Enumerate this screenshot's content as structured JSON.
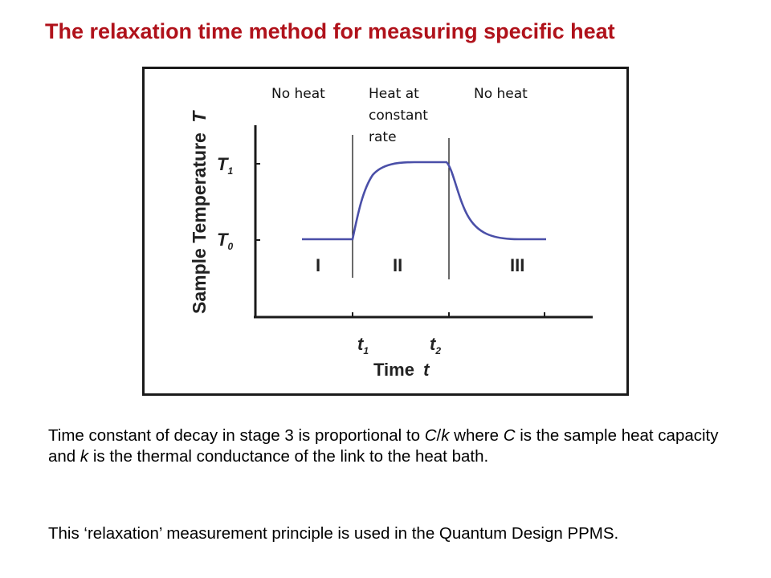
{
  "slide": {
    "title": "The relaxation time method for measuring specific heat"
  },
  "figure": {
    "ylabel": "Sample Temperature",
    "ylabel_var": "T",
    "y_ticks": [
      {
        "base": "T",
        "sub": "1"
      },
      {
        "base": "T",
        "sub": "0"
      }
    ],
    "xlabel": "Time",
    "xlabel_var": "t",
    "x_ticks": [
      {
        "base": "t",
        "sub": "1"
      },
      {
        "base": "t",
        "sub": "2"
      }
    ],
    "stages": [
      "I",
      "II",
      "III"
    ],
    "phase_labels": [
      "No heat",
      "Heat at\nconstant\nrate",
      "No heat"
    ],
    "curve_color": "#4a4fa8",
    "axis_color": "#1a1a1a"
  },
  "text": {
    "p1": {
      "a": "Time constant of decay in stage 3 is proportional to ",
      "C1": "C",
      "slash": "/",
      "k1": "k",
      "b": " where ",
      "C2": "C",
      "c": " is the sample heat capacity and ",
      "k2": "k",
      "d": " is the thermal conductance of the link to the heat bath."
    },
    "p2": "This ‘relaxation’ measurement principle is used in the Quantum Design PPMS."
  }
}
